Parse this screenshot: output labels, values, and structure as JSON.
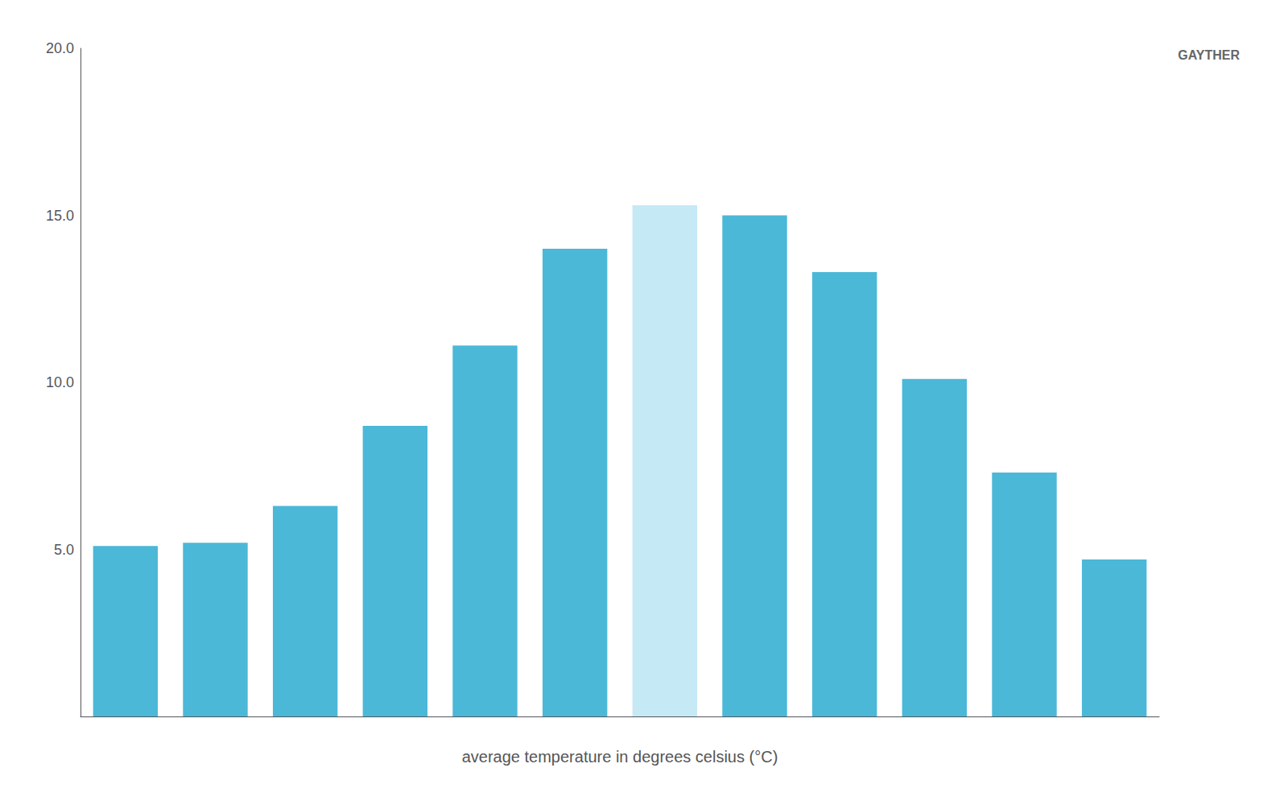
{
  "chart_data": {
    "type": "bar",
    "xlabel": "average temperature in degrees celsius (°C)",
    "categories": [
      null,
      null,
      null,
      null,
      null,
      null,
      null,
      null,
      null,
      null,
      null,
      null
    ],
    "values": [
      5.1,
      5.2,
      6.3,
      8.7,
      11.1,
      14.0,
      15.3,
      15.0,
      13.3,
      10.1,
      7.3,
      4.7
    ],
    "colors": [
      "#4BB8D8",
      "#4BB8D8",
      "#4BB8D8",
      "#4BB8D8",
      "#4BB8D8",
      "#4BB8D8",
      "#C5E9F5",
      "#4BB8D8",
      "#4BB8D8",
      "#4BB8D8",
      "#4BB8D8",
      "#4BB8D8"
    ],
    "ylim": [
      0,
      20
    ],
    "yticks": [
      {
        "value": 5.0,
        "label": "5.0"
      },
      {
        "value": 10.0,
        "label": "10.0"
      },
      {
        "value": 15.0,
        "label": "15.0"
      },
      {
        "value": 20.0,
        "label": "20.0"
      }
    ],
    "grid": false,
    "tick_labels": "y",
    "annotations": [
      "GAYTHER"
    ]
  }
}
